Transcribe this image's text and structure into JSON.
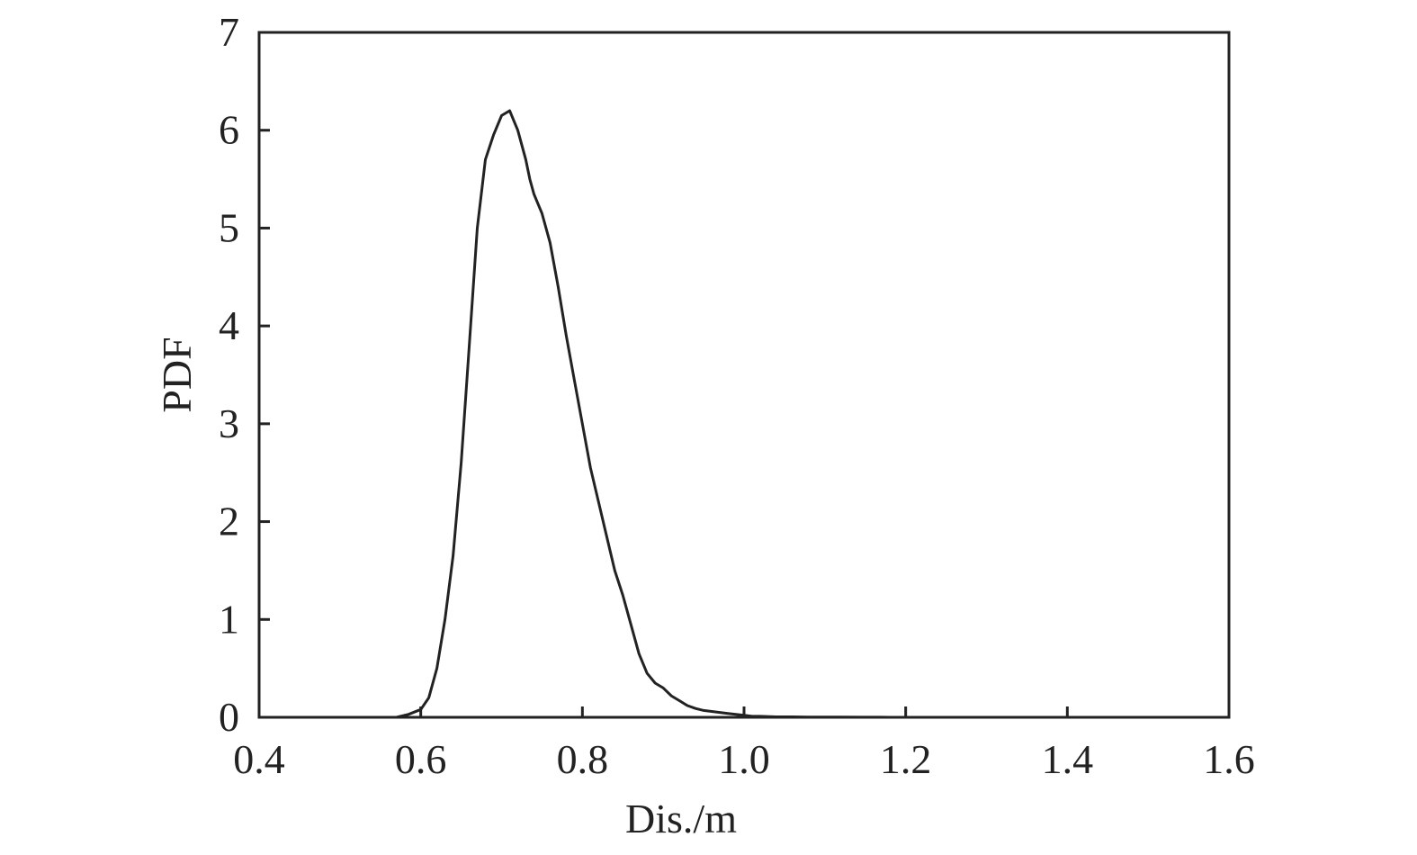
{
  "chart_data": {
    "type": "line",
    "title": "",
    "xlabel": "Dis./m",
    "ylabel": "PDF",
    "xlim": [
      0.4,
      1.6
    ],
    "ylim": [
      0,
      7
    ],
    "xticks": [
      0.4,
      0.6,
      0.8,
      1.0,
      1.2,
      1.4,
      1.6
    ],
    "xtick_labels": [
      "0.4",
      "0.6",
      "0.8",
      "1.0",
      "1.2",
      "1.4",
      "1.6"
    ],
    "yticks": [
      0,
      1,
      2,
      3,
      4,
      5,
      6,
      7
    ],
    "ytick_labels": [
      "0",
      "1",
      "2",
      "3",
      "4",
      "5",
      "6",
      "7"
    ],
    "grid": false,
    "line_color": "#222222",
    "series": [
      {
        "x": [
          0.4,
          0.5,
          0.57,
          0.585,
          0.6,
          0.61,
          0.62,
          0.63,
          0.64,
          0.65,
          0.66,
          0.67,
          0.68,
          0.69,
          0.7,
          0.71,
          0.72,
          0.73,
          0.735,
          0.74,
          0.745,
          0.75,
          0.76,
          0.77,
          0.78,
          0.79,
          0.8,
          0.81,
          0.82,
          0.83,
          0.84,
          0.85,
          0.86,
          0.87,
          0.88,
          0.89,
          0.9,
          0.91,
          0.92,
          0.93,
          0.94,
          0.95,
          0.96,
          0.97,
          0.98,
          0.99,
          1.0,
          1.01,
          1.02,
          1.04,
          1.06,
          1.08,
          1.1,
          1.12,
          1.15,
          1.17,
          1.18,
          1.2,
          1.4,
          1.6
        ],
        "y": [
          0,
          0,
          0,
          0.03,
          0.08,
          0.2,
          0.5,
          1.0,
          1.65,
          2.6,
          3.8,
          5.0,
          5.7,
          5.95,
          6.15,
          6.2,
          6.0,
          5.7,
          5.5,
          5.35,
          5.25,
          5.15,
          4.85,
          4.4,
          3.9,
          3.45,
          3.0,
          2.55,
          2.2,
          1.85,
          1.5,
          1.25,
          0.95,
          0.65,
          0.45,
          0.35,
          0.3,
          0.22,
          0.17,
          0.12,
          0.09,
          0.07,
          0.06,
          0.05,
          0.04,
          0.03,
          0.02,
          0.01,
          0.01,
          0.005,
          0.005,
          0.003,
          0.002,
          0.002,
          0.001,
          0.001,
          0,
          0,
          0,
          0
        ]
      }
    ]
  }
}
